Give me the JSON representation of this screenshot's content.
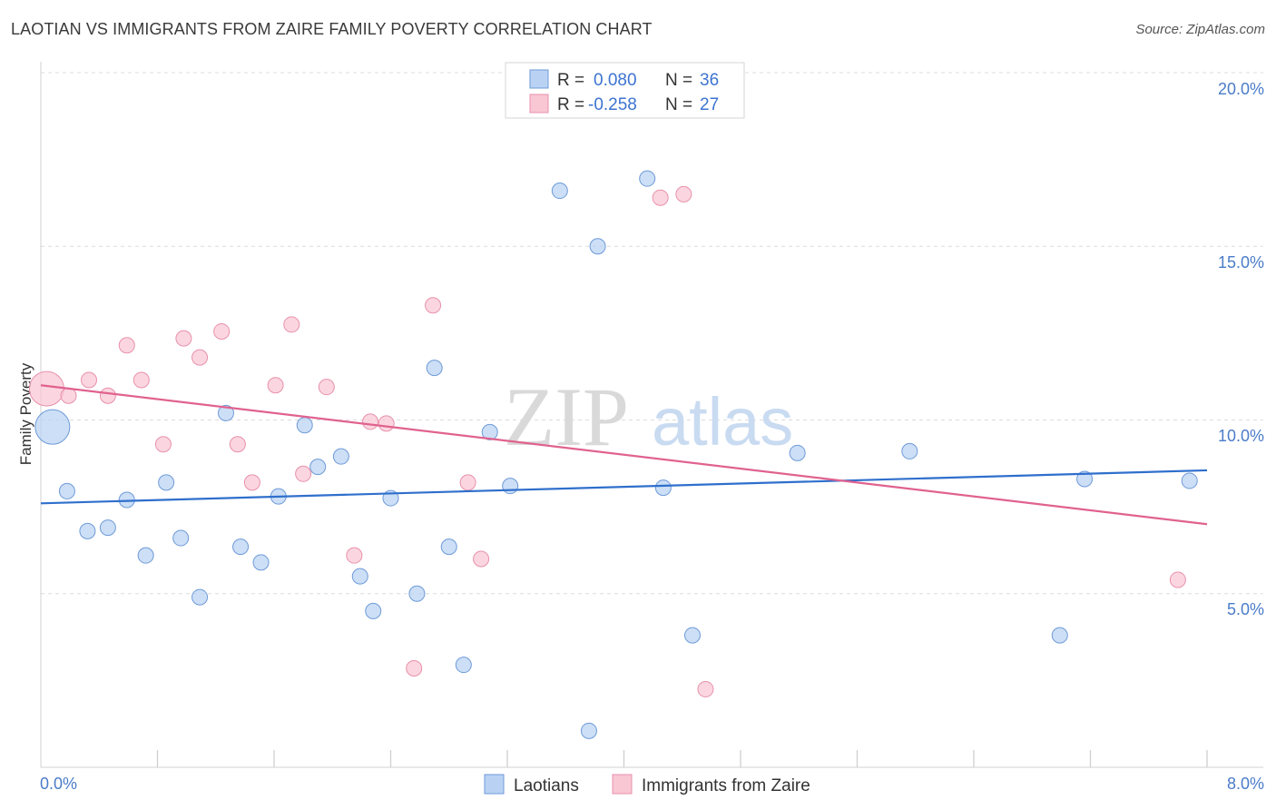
{
  "header": {
    "title": "LAOTIAN VS IMMIGRANTS FROM ZAIRE FAMILY POVERTY CORRELATION CHART",
    "source": "Source: ZipAtlas.com"
  },
  "watermark": {
    "zip": "ZIP",
    "atlas": "atlas"
  },
  "colors": {
    "blue_fill": "#b9d2f3",
    "blue_stroke": "#6e9ad8",
    "blue_line": "#2f6fcc",
    "pink_fill": "#f9c6d4",
    "pink_stroke": "#e891ab",
    "pink_line": "#e0628f",
    "grid": "#dcdcdc",
    "axis_text": "#4a7cc9"
  },
  "chart_data": {
    "type": "scatter",
    "title": "LAOTIAN VS IMMIGRANTS FROM ZAIRE FAMILY POVERTY CORRELATION CHART",
    "xlabel": "",
    "ylabel": "Family Poverty",
    "xlim": [
      0.0,
      8.0
    ],
    "ylim": [
      0.0,
      20.0
    ],
    "x_tick_labels": [
      "0.0%",
      "8.0%"
    ],
    "y_ticks": [
      5,
      10,
      15,
      20
    ],
    "y_tick_labels": [
      "5.0%",
      "10.0%",
      "15.0%",
      "20.0%"
    ],
    "legend": {
      "entries": [
        {
          "r_label": "R =",
          "r_value": "0.080",
          "n_label": "N =",
          "n_value": "36"
        },
        {
          "r_label": "R =",
          "r_value": "-0.258",
          "n_label": "N =",
          "n_value": "27"
        }
      ]
    },
    "series": [
      {
        "name": "Laotians",
        "color": "#b9d2f3",
        "trend": {
          "x": [
            0.0,
            8.0
          ],
          "y": [
            7.6,
            8.55
          ]
        },
        "points": [
          {
            "x": 0.08,
            "y": 9.8,
            "size": "large"
          },
          {
            "x": 0.18,
            "y": 7.95
          },
          {
            "x": 0.32,
            "y": 6.8
          },
          {
            "x": 0.46,
            "y": 6.9
          },
          {
            "x": 0.59,
            "y": 7.7
          },
          {
            "x": 0.72,
            "y": 6.1
          },
          {
            "x": 0.86,
            "y": 8.2
          },
          {
            "x": 0.96,
            "y": 6.6
          },
          {
            "x": 1.09,
            "y": 4.9
          },
          {
            "x": 1.27,
            "y": 10.2
          },
          {
            "x": 1.37,
            "y": 6.35
          },
          {
            "x": 1.51,
            "y": 5.9
          },
          {
            "x": 1.63,
            "y": 7.8
          },
          {
            "x": 1.81,
            "y": 9.85
          },
          {
            "x": 1.9,
            "y": 8.65
          },
          {
            "x": 2.06,
            "y": 8.95
          },
          {
            "x": 2.19,
            "y": 5.5
          },
          {
            "x": 2.28,
            "y": 4.5
          },
          {
            "x": 2.4,
            "y": 7.75
          },
          {
            "x": 2.58,
            "y": 5.0
          },
          {
            "x": 2.7,
            "y": 11.5
          },
          {
            "x": 2.8,
            "y": 6.35
          },
          {
            "x": 2.9,
            "y": 2.95
          },
          {
            "x": 3.08,
            "y": 9.65
          },
          {
            "x": 3.22,
            "y": 8.1
          },
          {
            "x": 3.56,
            "y": 16.6
          },
          {
            "x": 3.76,
            "y": 1.05
          },
          {
            "x": 3.82,
            "y": 15.0
          },
          {
            "x": 4.16,
            "y": 16.95
          },
          {
            "x": 4.27,
            "y": 8.05
          },
          {
            "x": 4.47,
            "y": 3.8
          },
          {
            "x": 5.19,
            "y": 9.05
          },
          {
            "x": 5.96,
            "y": 9.1
          },
          {
            "x": 6.99,
            "y": 3.8
          },
          {
            "x": 7.16,
            "y": 8.3
          },
          {
            "x": 7.88,
            "y": 8.25
          }
        ]
      },
      {
        "name": "Immigrants from Zaire",
        "color": "#f9c6d4",
        "trend": {
          "x": [
            0.0,
            8.0
          ],
          "y": [
            11.0,
            7.0
          ]
        },
        "points": [
          {
            "x": 0.04,
            "y": 10.9,
            "size": "large"
          },
          {
            "x": 0.19,
            "y": 10.7
          },
          {
            "x": 0.33,
            "y": 11.15
          },
          {
            "x": 0.46,
            "y": 10.7
          },
          {
            "x": 0.59,
            "y": 12.15
          },
          {
            "x": 0.69,
            "y": 11.15
          },
          {
            "x": 0.84,
            "y": 9.3
          },
          {
            "x": 0.98,
            "y": 12.35
          },
          {
            "x": 1.09,
            "y": 11.8
          },
          {
            "x": 1.24,
            "y": 12.55
          },
          {
            "x": 1.35,
            "y": 9.3
          },
          {
            "x": 1.45,
            "y": 8.2
          },
          {
            "x": 1.61,
            "y": 11.0
          },
          {
            "x": 1.72,
            "y": 12.75
          },
          {
            "x": 1.8,
            "y": 8.45
          },
          {
            "x": 1.96,
            "y": 10.95
          },
          {
            "x": 2.15,
            "y": 6.1
          },
          {
            "x": 2.26,
            "y": 9.95
          },
          {
            "x": 2.37,
            "y": 9.9
          },
          {
            "x": 2.56,
            "y": 2.85
          },
          {
            "x": 2.69,
            "y": 13.3
          },
          {
            "x": 2.93,
            "y": 8.2
          },
          {
            "x": 3.02,
            "y": 6.0
          },
          {
            "x": 4.25,
            "y": 16.4
          },
          {
            "x": 4.41,
            "y": 16.5
          },
          {
            "x": 4.56,
            "y": 2.25
          },
          {
            "x": 7.8,
            "y": 5.4
          }
        ]
      }
    ]
  }
}
